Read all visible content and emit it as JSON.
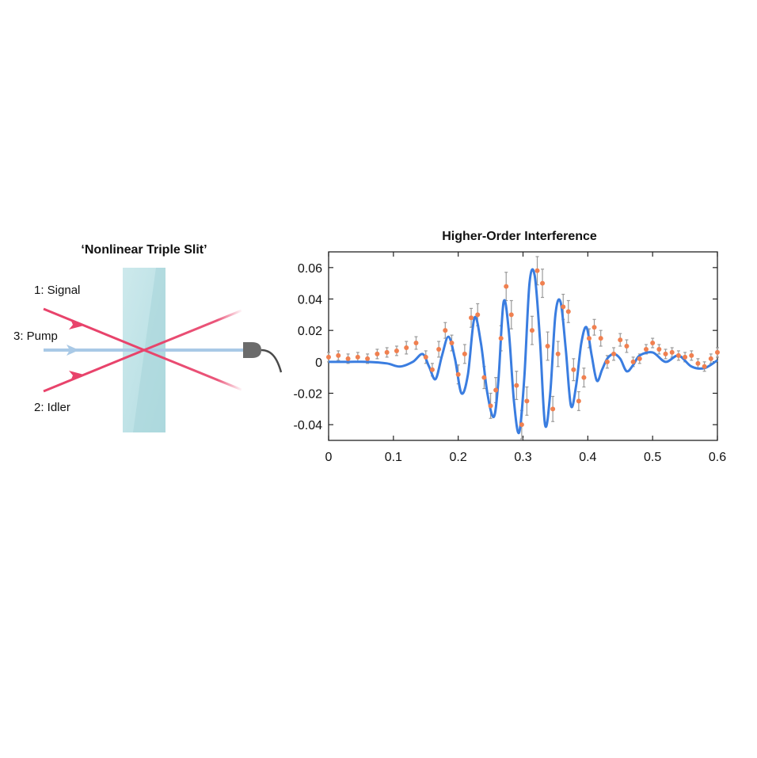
{
  "diagram": {
    "title": "‘Nonlinear Triple Slit’",
    "labels": {
      "signal": "1: Signal",
      "pump": "3: Pump",
      "idler": "2: Idler"
    },
    "colors": {
      "signal": "#e8436b",
      "idler": "#e8436b",
      "pump": "#a9c9e6",
      "crystal": "#bfe3e6",
      "detector": "#6b6b6b"
    },
    "icons": [
      "nonlinear-crystal",
      "detector-icon"
    ]
  },
  "chart_data": {
    "type": "line",
    "title": "Higher-Order Interference",
    "xlabel": "",
    "ylabel": "",
    "xlim": [
      0,
      0.6
    ],
    "ylim": [
      -0.05,
      0.07
    ],
    "xticks": [
      0,
      0.1,
      0.2,
      0.3,
      0.4,
      0.5,
      0.6
    ],
    "xtick_labels": [
      "0",
      "0.1",
      "0.2",
      "0.3",
      "0.4",
      "0.5",
      "0.6"
    ],
    "yticks": [
      -0.04,
      -0.02,
      0,
      0.02,
      0.04,
      0.06
    ],
    "ytick_labels": [
      "-0.04",
      "-0.02",
      "0",
      "0.02",
      "0.04",
      "0.06"
    ],
    "grid": false,
    "colors": {
      "fit": "#3a7de0",
      "data": "#f08050",
      "errorbar": "#9a9a9a"
    },
    "series": [
      {
        "kind": "line",
        "x": [
          0.0,
          0.03,
          0.06,
          0.09,
          0.11,
          0.13,
          0.145,
          0.155,
          0.165,
          0.175,
          0.185,
          0.195,
          0.205,
          0.215,
          0.225,
          0.235,
          0.245,
          0.255,
          0.262,
          0.27,
          0.278,
          0.286,
          0.294,
          0.302,
          0.31,
          0.318,
          0.326,
          0.334,
          0.342,
          0.35,
          0.358,
          0.366,
          0.374,
          0.382,
          0.39,
          0.398,
          0.406,
          0.414,
          0.422,
          0.43,
          0.44,
          0.45,
          0.46,
          0.47,
          0.48,
          0.5,
          0.52,
          0.54,
          0.56,
          0.58,
          0.6
        ],
        "y": [
          0.0,
          0.0,
          0.0,
          -0.001,
          -0.003,
          0.0,
          0.005,
          -0.003,
          -0.011,
          0.004,
          0.016,
          0.002,
          -0.02,
          -0.008,
          0.028,
          0.012,
          -0.02,
          -0.035,
          -0.012,
          0.038,
          0.02,
          -0.025,
          -0.045,
          -0.01,
          0.05,
          0.055,
          0.015,
          -0.04,
          -0.02,
          0.03,
          0.038,
          0.008,
          -0.028,
          -0.015,
          0.012,
          0.022,
          0.004,
          -0.012,
          -0.005,
          0.002,
          0.005,
          0.002,
          -0.006,
          -0.002,
          0.004,
          0.006,
          0.0,
          0.004,
          -0.003,
          -0.004,
          0.001
        ]
      },
      {
        "kind": "scatter",
        "x": [
          0.0,
          0.015,
          0.03,
          0.045,
          0.06,
          0.075,
          0.09,
          0.105,
          0.12,
          0.135,
          0.15,
          0.16,
          0.17,
          0.18,
          0.19,
          0.2,
          0.21,
          0.22,
          0.23,
          0.24,
          0.25,
          0.258,
          0.266,
          0.274,
          0.282,
          0.29,
          0.298,
          0.306,
          0.314,
          0.322,
          0.33,
          0.338,
          0.346,
          0.354,
          0.362,
          0.37,
          0.378,
          0.386,
          0.394,
          0.402,
          0.41,
          0.42,
          0.43,
          0.44,
          0.45,
          0.46,
          0.47,
          0.48,
          0.49,
          0.5,
          0.51,
          0.52,
          0.53,
          0.54,
          0.55,
          0.56,
          0.57,
          0.58,
          0.59,
          0.6
        ],
        "y": [
          0.003,
          0.004,
          0.002,
          0.003,
          0.002,
          0.005,
          0.006,
          0.007,
          0.009,
          0.012,
          0.003,
          -0.005,
          0.008,
          0.02,
          0.012,
          -0.008,
          0.005,
          0.028,
          0.03,
          -0.01,
          -0.028,
          -0.018,
          0.015,
          0.048,
          0.03,
          -0.015,
          -0.04,
          -0.025,
          0.02,
          0.058,
          0.05,
          0.01,
          -0.03,
          0.005,
          0.035,
          0.032,
          -0.005,
          -0.025,
          -0.01,
          0.015,
          0.022,
          0.015,
          0.0,
          0.005,
          0.014,
          0.01,
          0.0,
          0.002,
          0.008,
          0.012,
          0.008,
          0.005,
          0.006,
          0.004,
          0.003,
          0.004,
          -0.001,
          -0.003,
          0.002,
          0.006
        ],
        "yerr": [
          0.003,
          0.003,
          0.003,
          0.003,
          0.003,
          0.003,
          0.003,
          0.003,
          0.004,
          0.004,
          0.004,
          0.004,
          0.005,
          0.005,
          0.005,
          0.006,
          0.006,
          0.006,
          0.007,
          0.007,
          0.008,
          0.008,
          0.008,
          0.009,
          0.009,
          0.009,
          0.009,
          0.009,
          0.009,
          0.009,
          0.009,
          0.009,
          0.008,
          0.008,
          0.008,
          0.007,
          0.007,
          0.006,
          0.006,
          0.006,
          0.005,
          0.005,
          0.004,
          0.004,
          0.004,
          0.004,
          0.003,
          0.003,
          0.003,
          0.003,
          0.003,
          0.003,
          0.003,
          0.003,
          0.003,
          0.003,
          0.003,
          0.003,
          0.003,
          0.003
        ]
      }
    ]
  }
}
